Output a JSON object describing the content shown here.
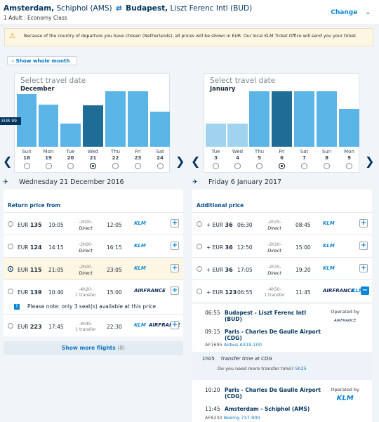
{
  "header": {
    "origin_city": "Amsterdam,",
    "origin_airport": "Schiphol (AMS)",
    "swap_icon": "⇄",
    "dest_city": "Budapest,",
    "dest_airport": "Liszt Ferenc Intl (BUD)",
    "passengers": "1 Adult",
    "cabin": "Economy Class",
    "change_label": "Change",
    "change_icon": "⌄"
  },
  "notice": {
    "icon": "⚠",
    "text": "Because of the country of departure you have chosen (Netherlands), all prices will be shown in EUR. Our local KLM Ticket Office will send you your ticket."
  },
  "show_month": {
    "arrow": "‹",
    "label": "Show whole month"
  },
  "outbound_calendar": {
    "title": "Select travel date",
    "month": "December",
    "price_tag": "EUR 99",
    "days": [
      {
        "dow": "Sun",
        "num": "18"
      },
      {
        "dow": "Mon",
        "num": "19"
      },
      {
        "dow": "Tue",
        "num": "20"
      },
      {
        "dow": "Wed",
        "num": "21"
      },
      {
        "dow": "Thu",
        "num": "22"
      },
      {
        "dow": "Fri",
        "num": "23"
      },
      {
        "dow": "Sat",
        "num": "24"
      }
    ]
  },
  "return_calendar": {
    "title": "Select travel date",
    "month": "January",
    "days": [
      {
        "dow": "Tue",
        "num": "3"
      },
      {
        "dow": "Wed",
        "num": "4"
      },
      {
        "dow": "Thu",
        "num": "5"
      },
      {
        "dow": "Fri",
        "num": "6"
      },
      {
        "dow": "Sat",
        "num": "7"
      },
      {
        "dow": "Sun",
        "num": "8"
      },
      {
        "dow": "Mon",
        "num": "9"
      }
    ]
  },
  "nav": {
    "prev": "❮",
    "next": "❯"
  },
  "outbound": {
    "plane_icon": "✈",
    "date": "Wednesday 21 December 2016",
    "subheading": "Return price from",
    "flights": [
      {
        "cur": "EUR",
        "price": "135",
        "dep": "10:05",
        "dur": "2h00",
        "stops": "Direct",
        "arr": "12:05",
        "airline": "KLM"
      },
      {
        "cur": "EUR",
        "price": "124",
        "dep": "14:15",
        "dur": "2h00",
        "stops": "Direct",
        "arr": "16:15",
        "airline": "KLM"
      },
      {
        "cur": "EUR",
        "price": "115",
        "dep": "21:05",
        "dur": "2h00",
        "stops": "Direct",
        "arr": "23:05",
        "airline": "KLM"
      },
      {
        "cur": "EUR",
        "price": "139",
        "dep": "10:40",
        "dur": "4h20",
        "stops": "1 transfer",
        "arr": "15:00",
        "airline": "AIRFRANCE"
      },
      {
        "cur": "EUR",
        "price": "223",
        "dep": "17:45",
        "dur": "4h45",
        "stops": "1 transfer",
        "arr": "22:30",
        "airline": "KLM",
        "airline2": "AIRFRANCE"
      }
    ],
    "seat_note": "Please note: only 3 seat(s) available at this price",
    "seat_icon": "!",
    "more_label": "Show more flights",
    "more_count": "(8)"
  },
  "inbound": {
    "plane_icon": "✈",
    "date": "Friday 6 January 2017",
    "subheading": "Additional price",
    "flights": [
      {
        "sign": "+",
        "cur": "EUR",
        "price": "36",
        "dep": "06:30",
        "dur": "2h15",
        "stops": "Direct",
        "arr": "08:45",
        "airline": "KLM"
      },
      {
        "sign": "+",
        "cur": "EUR",
        "price": "36",
        "dep": "12:50",
        "dur": "2h10",
        "stops": "Direct",
        "arr": "15:00",
        "airline": "KLM"
      },
      {
        "sign": "+",
        "cur": "EUR",
        "price": "36",
        "dep": "17:05",
        "dur": "2h15",
        "stops": "Direct",
        "arr": "19:20",
        "airline": "KLM"
      },
      {
        "sign": "+",
        "cur": "EUR",
        "price": "123",
        "dep": "06:55",
        "dur": "4h50",
        "stops": "1 transfer",
        "arr": "11:45",
        "airline": "AIRFRANCE",
        "airline2": "KLM"
      }
    ],
    "segments": [
      {
        "dep_time": "06:55",
        "dep_place": "Budapest - Liszt Ferenc Intl",
        "dep_code": "(BUD)",
        "arr_time": "09:15",
        "arr_place": "Paris - Charles De Gaulle Airport",
        "arr_code": "(CDG)",
        "flight": "AF1695",
        "aircraft": "Airbus A319-100",
        "operated": "Operated by",
        "operator": "AIRFRANCE"
      },
      {
        "dep_time": "10:20",
        "dep_place": "Paris - Charles De Gaulle Airport",
        "dep_code": "(CDG)",
        "arr_time": "11:45",
        "arr_place": "Amsterdam - Schiphol (AMS)",
        "arr_code": "",
        "flight": "AF8230",
        "aircraft": "Boeing 737-900",
        "operated": "Operated by",
        "operator": "KLM"
      }
    ],
    "transfer_duration": "1h05",
    "transfer_text": "Transfer time at CDG",
    "transfer_question": "Do you need more transfer time?",
    "transfer_link": "5h25"
  },
  "icons": {
    "plus": "+",
    "minus": "−",
    "seat_icon": "!"
  }
}
